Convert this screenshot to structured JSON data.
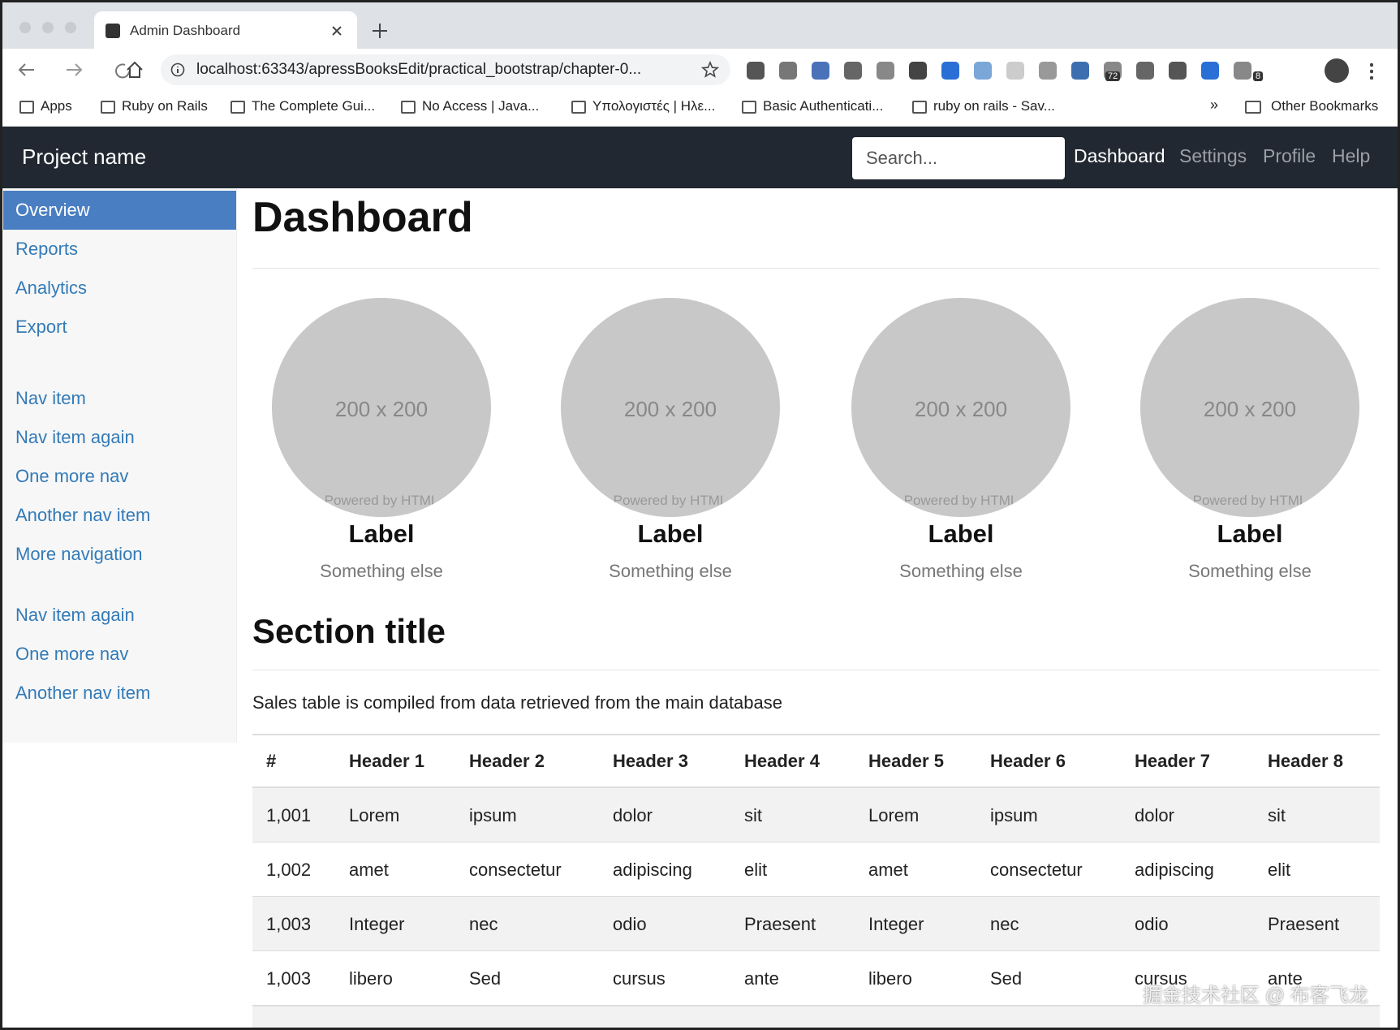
{
  "browser": {
    "tab_title": "Admin Dashboard",
    "url": "localhost:63343/apressBooksEdit/practical_bootstrap/chapter-0...",
    "extension_badges": [
      "72",
      "8"
    ],
    "bookmarks": [
      "Apps",
      "Ruby on Rails",
      "The Complete Gui...",
      "No Access | Java...",
      "Υπολογιστές | Ηλε...",
      "Basic Authenticati...",
      "ruby on rails - Sav..."
    ],
    "overflow": "»",
    "other_bookmarks": "Other Bookmarks"
  },
  "navbar": {
    "brand": "Project name",
    "search_placeholder": "Search...",
    "links": [
      "Dashboard",
      "Settings",
      "Profile",
      "Help"
    ]
  },
  "sidebar": {
    "groups": [
      [
        "Overview",
        "Reports",
        "Analytics",
        "Export"
      ],
      [
        "Nav item",
        "Nav item again",
        "One more nav",
        "Another nav item",
        "More navigation"
      ],
      [
        "Nav item again",
        "One more nav",
        "Another nav item"
      ]
    ]
  },
  "main": {
    "title": "Dashboard",
    "placeholders": [
      {
        "image_text": "200 x 200",
        "image_caption": "Powered by HTML",
        "label": "Label",
        "sublabel": "Something else"
      },
      {
        "image_text": "200 x 200",
        "image_caption": "Powered by HTML",
        "label": "Label",
        "sublabel": "Something else"
      },
      {
        "image_text": "200 x 200",
        "image_caption": "Powered by HTML",
        "label": "Label",
        "sublabel": "Something else"
      },
      {
        "image_text": "200 x 200",
        "image_caption": "Powered by HTML",
        "label": "Label",
        "sublabel": "Something else"
      }
    ],
    "section_title": "Section title",
    "description": "Sales table is compiled from data retrieved from the main database",
    "table": {
      "headers": [
        "#",
        "Header 1",
        "Header 2",
        "Header 3",
        "Header 4",
        "Header 5",
        "Header 6",
        "Header 7",
        "Header 8"
      ],
      "rows": [
        [
          "1,001",
          "Lorem",
          "ipsum",
          "dolor",
          "sit",
          "Lorem",
          "ipsum",
          "dolor",
          "sit"
        ],
        [
          "1,002",
          "amet",
          "consectetur",
          "adipiscing",
          "elit",
          "amet",
          "consectetur",
          "adipiscing",
          "elit"
        ],
        [
          "1,003",
          "Integer",
          "nec",
          "odio",
          "Praesent",
          "Integer",
          "nec",
          "odio",
          "Praesent"
        ],
        [
          "1,003",
          "libero",
          "Sed",
          "cursus",
          "ante",
          "libero",
          "Sed",
          "cursus",
          "ante"
        ]
      ]
    }
  },
  "watermark": "掘金技术社区 @ 布客飞龙"
}
